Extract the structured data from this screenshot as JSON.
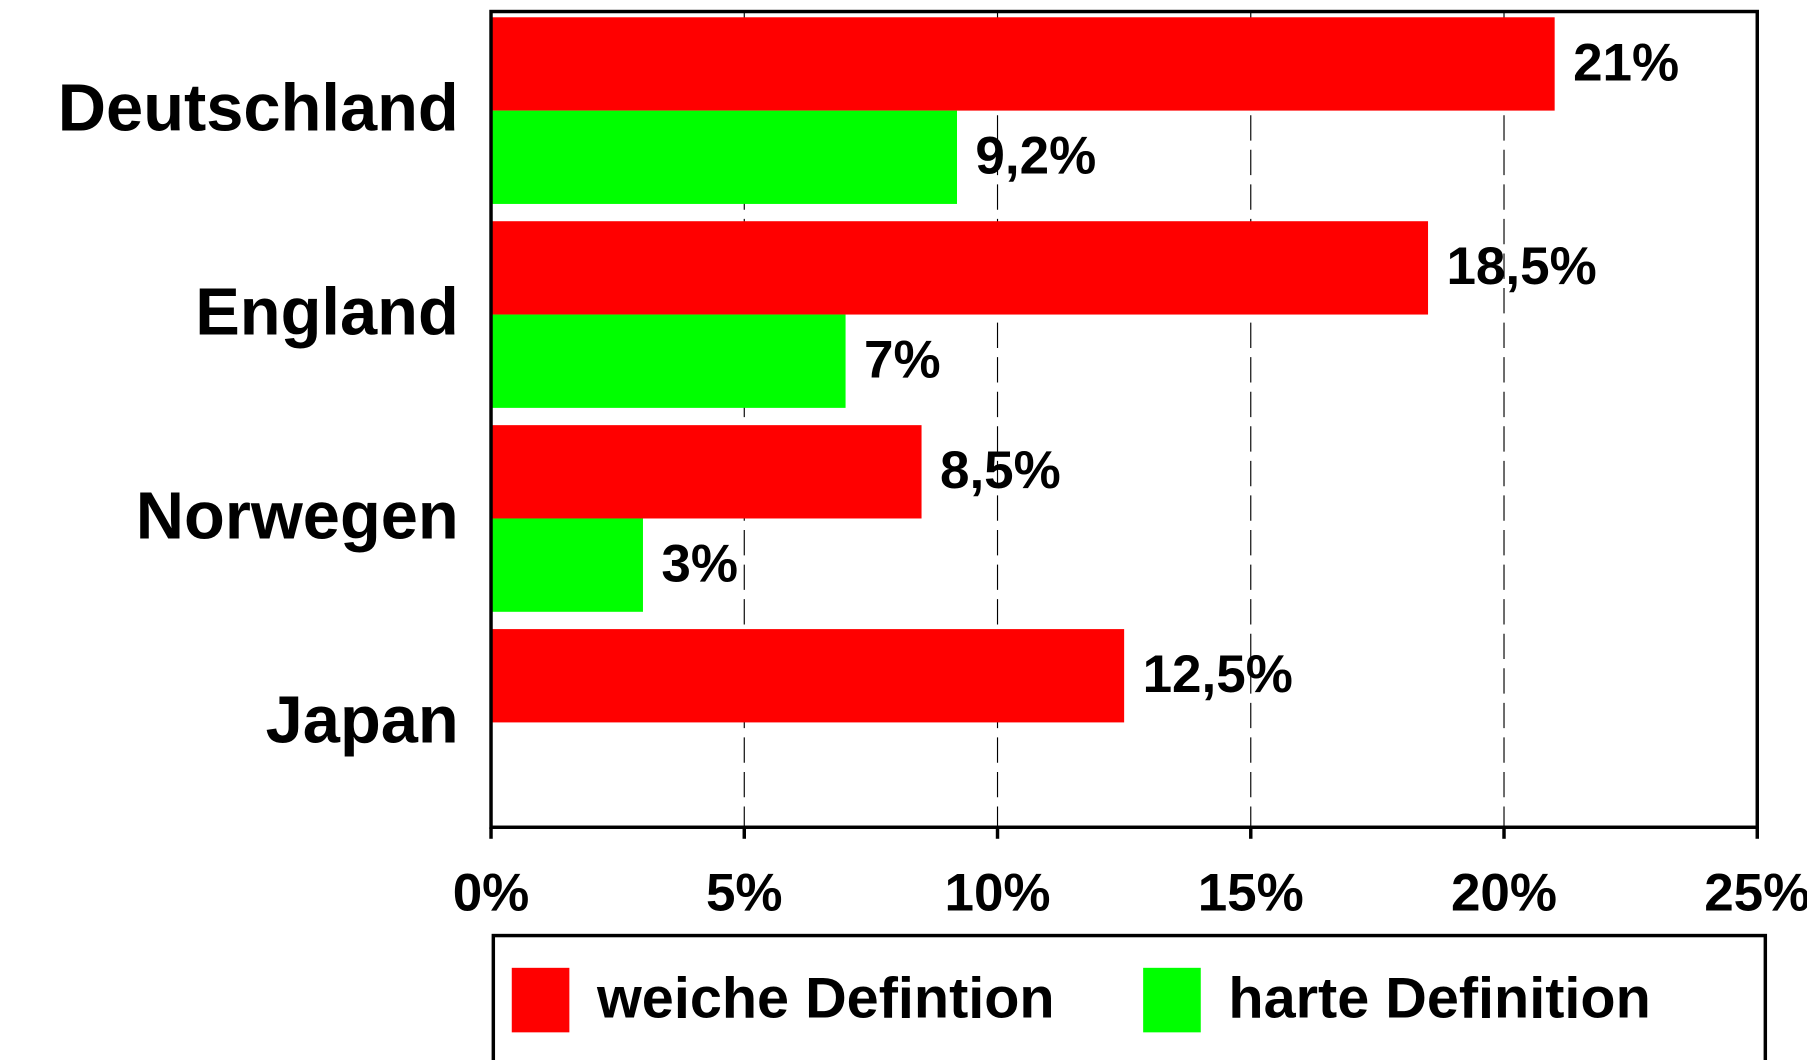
{
  "chart_data": {
    "type": "hbar",
    "categories": [
      "Deutschland",
      "England",
      "Norwegen",
      "Japan"
    ],
    "series": [
      {
        "name": "weiche Defintion",
        "color": "#ff0000",
        "values": [
          21,
          18.5,
          8.5,
          12.5
        ],
        "value_labels": [
          "21%",
          "18,5%",
          "8,5%",
          "12,5%"
        ]
      },
      {
        "name": "harte Definition",
        "color": "#00ff00",
        "values": [
          9.2,
          7,
          3,
          null
        ],
        "value_labels": [
          "9,2%",
          "7%",
          "3%",
          null
        ]
      }
    ],
    "xlim": [
      0,
      25
    ],
    "xticks": [
      {
        "value": 0,
        "label": "0%"
      },
      {
        "value": 5,
        "label": "5%"
      },
      {
        "value": 10,
        "label": "10%"
      },
      {
        "value": 15,
        "label": "15%"
      },
      {
        "value": 20,
        "label": "20%"
      },
      {
        "value": 25,
        "label": "25%"
      }
    ],
    "grid": true
  }
}
